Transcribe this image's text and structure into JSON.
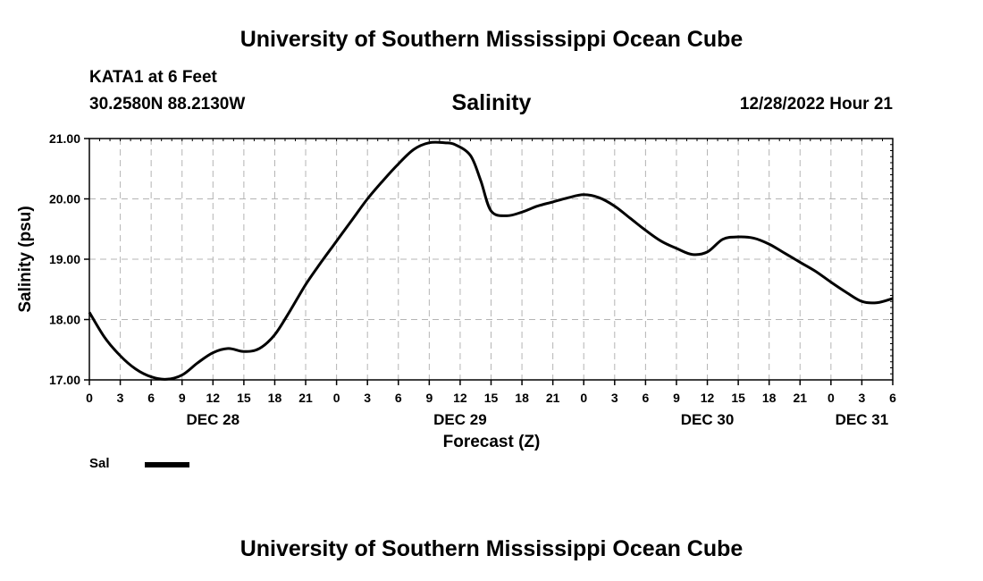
{
  "header": {
    "title": "University of Southern Mississippi Ocean Cube",
    "station": "KATA1 at 6 Feet",
    "coordinates": "30.2580N  88.2130W",
    "chart_title": "Salinity",
    "datetime": "12/28/2022 Hour 21"
  },
  "footer": {
    "title": "University of Southern Mississippi Ocean Cube"
  },
  "legend": {
    "label": "Sal"
  },
  "chart_data": {
    "type": "line",
    "title": "Salinity",
    "xlabel": "Forecast (Z)",
    "ylabel": "Salinity (psu)",
    "ylim": [
      17.0,
      21.0
    ],
    "y_ticks": [
      "17.00",
      "18.00",
      "19.00",
      "20.00",
      "21.00"
    ],
    "x_range_hours": [
      0,
      78
    ],
    "x_ticks": [
      "0",
      "3",
      "6",
      "9",
      "12",
      "15",
      "18",
      "21",
      "0",
      "3",
      "6",
      "9",
      "12",
      "15",
      "18",
      "21",
      "0",
      "3",
      "6",
      "9",
      "12",
      "15",
      "18",
      "21",
      "0",
      "3",
      "6"
    ],
    "date_labels": [
      {
        "label": "DEC 28",
        "hour": 12
      },
      {
        "label": "DEC 29",
        "hour": 36
      },
      {
        "label": "DEC 30",
        "hour": 60
      },
      {
        "label": "DEC 31",
        "hour": 75
      }
    ],
    "grid": true,
    "series": [
      {
        "name": "Sal",
        "x_hours": [
          0,
          1.5,
          3,
          4.5,
          6,
          7.5,
          9,
          10.5,
          12,
          13.5,
          15,
          16.5,
          18,
          19.5,
          21,
          22.5,
          24,
          25.5,
          27,
          28.5,
          30,
          31.5,
          33,
          34.5,
          35.5,
          37,
          38,
          39,
          40.5,
          42,
          43.5,
          45,
          46.5,
          48,
          49.5,
          51,
          52.5,
          54,
          55.5,
          57,
          58.5,
          60,
          61.5,
          63,
          64.5,
          66,
          67.5,
          69,
          70.5,
          72,
          73.5,
          75,
          76.5,
          78
        ],
        "y": [
          18.12,
          17.7,
          17.4,
          17.18,
          17.05,
          17.01,
          17.08,
          17.28,
          17.45,
          17.52,
          17.47,
          17.52,
          17.75,
          18.15,
          18.58,
          18.95,
          19.3,
          19.65,
          20.0,
          20.3,
          20.58,
          20.82,
          20.93,
          20.93,
          20.9,
          20.72,
          20.3,
          19.8,
          19.72,
          19.78,
          19.88,
          19.95,
          20.02,
          20.07,
          20.02,
          19.88,
          19.68,
          19.48,
          19.3,
          19.18,
          19.08,
          19.12,
          19.33,
          19.37,
          19.35,
          19.25,
          19.1,
          18.95,
          18.8,
          18.62,
          18.45,
          18.3,
          18.28,
          18.35
        ]
      }
    ]
  }
}
